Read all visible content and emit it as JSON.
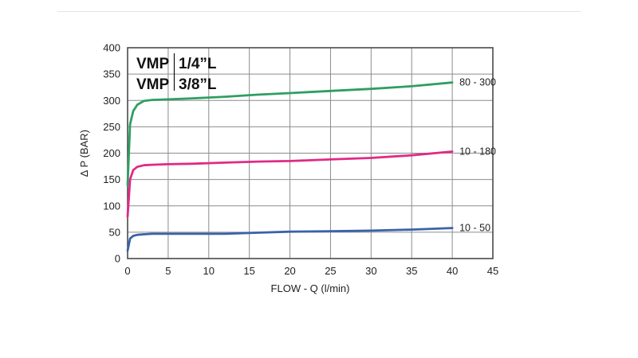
{
  "page": {
    "background": "#ffffff"
  },
  "chart_data": {
    "type": "line",
    "title": "",
    "xlabel": "FLOW - Q (l/min)",
    "ylabel": "∆ P (BAR)",
    "xlim": [
      0,
      45
    ],
    "ylim": [
      0,
      400
    ],
    "xticks": [
      0,
      5,
      10,
      15,
      20,
      25,
      30,
      35,
      40,
      45
    ],
    "yticks": [
      0,
      50,
      100,
      150,
      200,
      250,
      300,
      350,
      400
    ],
    "grid": true,
    "legend_position": "right-of-curve-ends",
    "annotations": [
      {
        "prefix": "VMP",
        "size": "1/4”L"
      },
      {
        "prefix": "VMP",
        "size": "3/8”L"
      }
    ],
    "series": [
      {
        "name": "80 - 300",
        "color": "#2f9e63",
        "points": [
          [
            0,
            140
          ],
          [
            0.3,
            255
          ],
          [
            0.7,
            280
          ],
          [
            1.2,
            292
          ],
          [
            2,
            299
          ],
          [
            3,
            301
          ],
          [
            5,
            302
          ],
          [
            8,
            304
          ],
          [
            12,
            307
          ],
          [
            16,
            311
          ],
          [
            20,
            314
          ],
          [
            25,
            318
          ],
          [
            30,
            322
          ],
          [
            35,
            327
          ],
          [
            40,
            334
          ]
        ]
      },
      {
        "name": "10 - 180",
        "color": "#e02a86",
        "points": [
          [
            0,
            80
          ],
          [
            0.3,
            150
          ],
          [
            0.7,
            168
          ],
          [
            1.2,
            174
          ],
          [
            2,
            177
          ],
          [
            3,
            178
          ],
          [
            5,
            179
          ],
          [
            8,
            180
          ],
          [
            12,
            182
          ],
          [
            16,
            184
          ],
          [
            20,
            185
          ],
          [
            25,
            188
          ],
          [
            30,
            191
          ],
          [
            35,
            196
          ],
          [
            40,
            203
          ]
        ]
      },
      {
        "name": "10 - 50",
        "color": "#3a62a8",
        "points": [
          [
            0,
            15
          ],
          [
            0.3,
            38
          ],
          [
            0.7,
            43
          ],
          [
            1.2,
            45
          ],
          [
            2,
            46
          ],
          [
            3,
            47
          ],
          [
            5,
            47
          ],
          [
            8,
            47
          ],
          [
            12,
            47
          ],
          [
            16,
            49
          ],
          [
            20,
            51
          ],
          [
            25,
            52
          ],
          [
            30,
            53
          ],
          [
            35,
            55
          ],
          [
            40,
            58
          ]
        ]
      }
    ]
  }
}
